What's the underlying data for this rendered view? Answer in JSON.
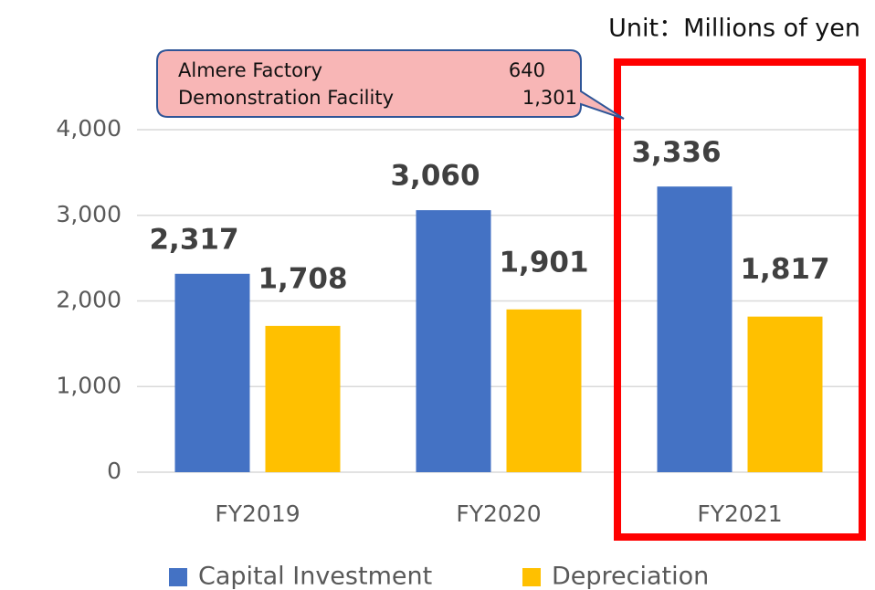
{
  "chart_data": {
    "type": "bar",
    "unit_note": "Unit：Millions of yen",
    "categories": [
      "FY2019",
      "FY2020",
      "FY2021"
    ],
    "series": [
      {
        "name": "Capital Investment",
        "color": "#4472c4",
        "values": [
          2317,
          3060,
          3336
        ],
        "value_labels": [
          "2,317",
          "3,060",
          "3,336"
        ]
      },
      {
        "name": "Depreciation",
        "color": "#ffc000",
        "values": [
          1708,
          1901,
          1817
        ],
        "value_labels": [
          "1,708",
          "1,901",
          "1,817"
        ]
      }
    ],
    "ylim": [
      0,
      4000
    ],
    "yticks": [
      0,
      {
        "value": 1000,
        "label": "1,000"
      },
      {
        "value": 2000,
        "label": "2,000"
      },
      {
        "value": 3000,
        "label": "3,000"
      },
      {
        "value": 4000,
        "label": "4,000"
      }
    ],
    "grid": true,
    "legend": "bottom",
    "annotation": {
      "items": [
        {
          "name": "Almere Factory",
          "value": 640
        },
        {
          "name": "Demonstration Facility",
          "value": 1301,
          "label": "1,301"
        }
      ]
    }
  }
}
